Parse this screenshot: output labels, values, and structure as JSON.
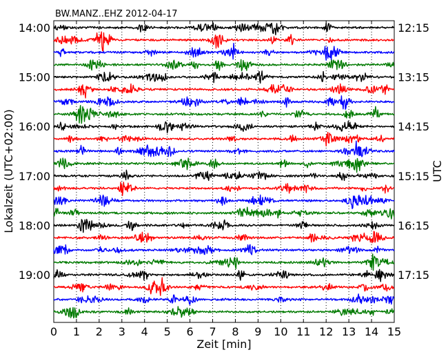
{
  "chart_data": {
    "type": "line",
    "title": "BW.MANZ..EHZ 2012-04-17",
    "xlabel": "Zeit  [min]",
    "ylabel_left": "Lokalzeit (UTC+02:00)",
    "ylabel_right": "UTC",
    "xlim": [
      0,
      15
    ],
    "x_ticks": [
      "0",
      "1",
      "2",
      "3",
      "4",
      "5",
      "6",
      "7",
      "8",
      "9",
      "10",
      "11",
      "12",
      "13",
      "14",
      "15"
    ],
    "grid": "vertical-dotted",
    "left_tick_labels": [
      "14:00",
      "15:00",
      "16:00",
      "17:00",
      "18:00",
      "19:00"
    ],
    "right_tick_labels": [
      "12:15",
      "13:15",
      "14:15",
      "15:15",
      "16:15",
      "17:15"
    ],
    "trace_count": 24,
    "trace_interval_minutes": 15,
    "color_cycle": [
      "#000000",
      "#ff0000",
      "#0000ff",
      "#007a00"
    ]
  }
}
